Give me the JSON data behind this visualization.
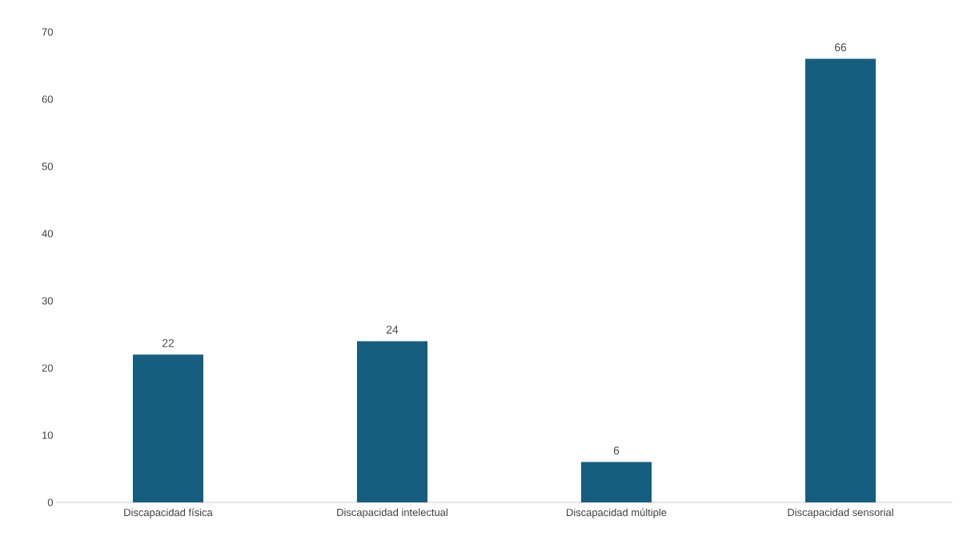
{
  "chart_data": {
    "type": "bar",
    "categories": [
      "Discapacidad física",
      "Discapacidad intelectual",
      "Discapacidad múltiple",
      "Discapacidad sensorial"
    ],
    "values": [
      22,
      24,
      6,
      66
    ],
    "color": "#165e80",
    "ylim": [
      0,
      70
    ],
    "yticks": [
      0,
      10,
      20,
      30,
      40,
      50,
      60,
      70
    ],
    "data_labels": true
  }
}
